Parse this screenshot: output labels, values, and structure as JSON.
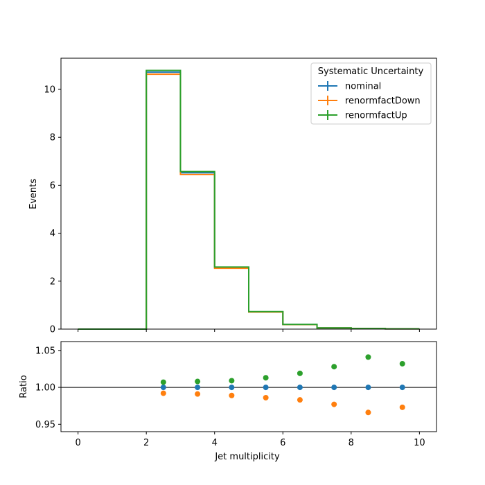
{
  "chart_data": {
    "type": "histogram-with-ratio",
    "bin_edges": [
      0,
      1,
      2,
      3,
      4,
      5,
      6,
      7,
      8,
      9,
      10
    ],
    "top_panel": {
      "ylabel": "Events",
      "ylim": [
        0,
        11.3
      ],
      "yticks": [
        0,
        2,
        4,
        6,
        8,
        10
      ],
      "series": [
        {
          "name": "nominal",
          "values": [
            0,
            0,
            10.72,
            6.52,
            2.57,
            0.72,
            0.19,
            0.05,
            0.025,
            0.01
          ]
        },
        {
          "name": "renormfactDown",
          "values": [
            0,
            0,
            10.63,
            6.45,
            2.54,
            0.71,
            0.187,
            0.049,
            0.024,
            0.0097
          ]
        },
        {
          "name": "renormfactUp",
          "values": [
            0,
            0,
            10.79,
            6.57,
            2.59,
            0.729,
            0.194,
            0.051,
            0.026,
            0.0103
          ]
        }
      ],
      "legend": {
        "title": "Systematic Uncertainty",
        "placement": "upper right"
      }
    },
    "bottom_panel": {
      "ylabel": "Ratio",
      "ylim": [
        0.94,
        1.062
      ],
      "yticks": [
        0.95,
        1.0,
        1.05
      ],
      "ytick_labels": [
        "0.95",
        "1.00",
        "1.05"
      ],
      "reference_line": 1.0,
      "x": [
        2.5,
        3.5,
        4.5,
        5.5,
        6.5,
        7.5,
        8.5,
        9.5
      ],
      "series": [
        {
          "name": "nominal",
          "values": [
            1.0,
            1.0,
            1.0,
            1.0,
            1.0,
            1.0,
            1.0,
            1.0
          ]
        },
        {
          "name": "renormfactDown",
          "values": [
            0.992,
            0.991,
            0.989,
            0.986,
            0.983,
            0.977,
            0.966,
            0.973
          ]
        },
        {
          "name": "renormfactUp",
          "values": [
            1.007,
            1.008,
            1.009,
            1.013,
            1.019,
            1.028,
            1.041,
            1.032
          ]
        }
      ]
    },
    "xlabel": "Jet multiplicity",
    "xlim": [
      -0.5,
      10.5
    ],
    "xticks": [
      0,
      2,
      4,
      6,
      8,
      10
    ],
    "colors": {
      "nominal": "#1f77b4",
      "renormfactDown": "#ff7f0e",
      "renormfactUp": "#2ca02c"
    }
  }
}
